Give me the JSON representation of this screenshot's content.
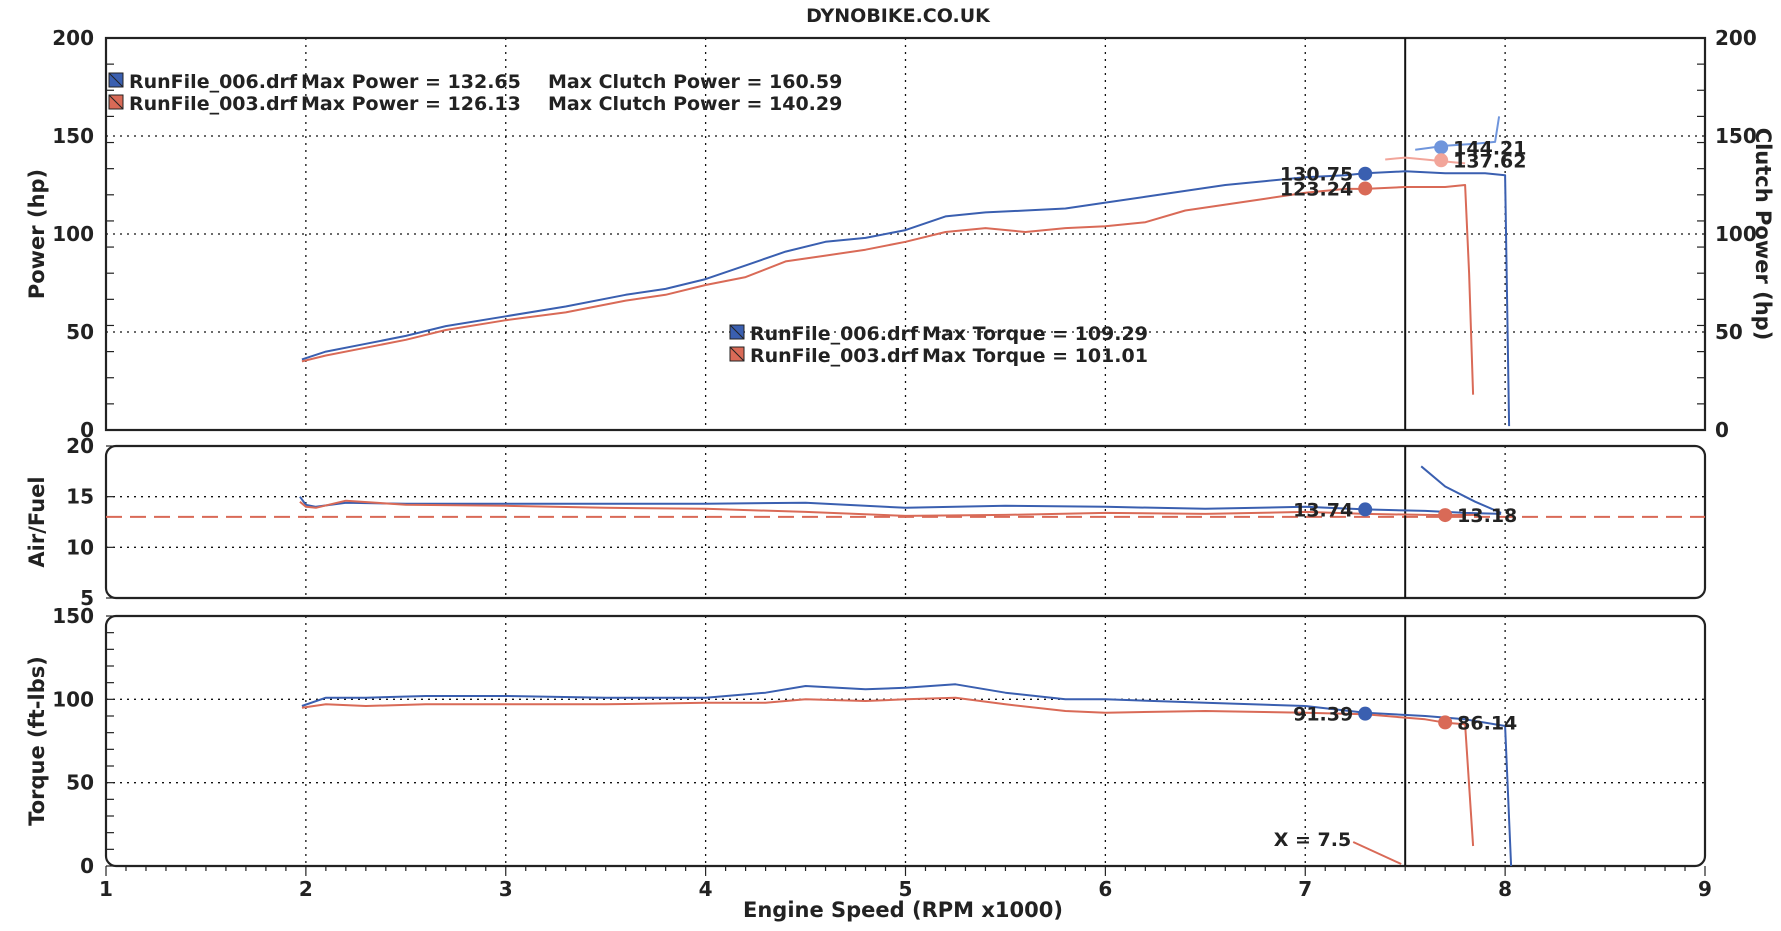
{
  "header": {
    "title": "DYNOBIKE.CO.UK"
  },
  "colors": {
    "run006": "#3a5fb0",
    "run003": "#d96a57",
    "run006_clutch": "#6f95dc",
    "run003_clutch": "#f2a59a",
    "afr_target": "#d96a57",
    "cursor": "#111111"
  },
  "chart_data": {
    "type": "line",
    "xlabel": "Engine Speed (RPM x1000)",
    "xlim": [
      1,
      9
    ],
    "x_ticks": [
      "1",
      "2",
      "3",
      "4",
      "5",
      "6",
      "7",
      "8",
      "9"
    ],
    "cursor": {
      "x": 7.5,
      "label": "X = 7.5"
    },
    "panels": [
      {
        "id": "power",
        "ylabel": "Power (hp)",
        "ylabel_right": "Clutch Power (hp)",
        "ylim": [
          0,
          200
        ],
        "y_ticks": [
          "0",
          "50",
          "100",
          "150",
          "200"
        ],
        "y_ticks_right": [
          "0",
          "50",
          "100",
          "150",
          "200"
        ],
        "legend": [
          {
            "file": "RunFile_006.drf",
            "text": "Max Power = 132.65",
            "clutch": "Max Clutch Power = 160.59"
          },
          {
            "file": "RunFile_003.drf",
            "text": "Max Power = 126.13",
            "clutch": "Max Clutch Power = 140.29"
          }
        ],
        "torque_legend": [
          {
            "file": "RunFile_006.drf",
            "text": "Max Torque = 109.29"
          },
          {
            "file": "RunFile_003.drf",
            "text": "Max Torque = 101.01"
          }
        ],
        "series": [
          {
            "name": "RunFile_006.drf",
            "x": [
              1.98,
              2.1,
              2.3,
              2.5,
              2.7,
              3.0,
              3.3,
              3.6,
              3.8,
              4.0,
              4.2,
              4.4,
              4.6,
              4.8,
              5.0,
              5.2,
              5.4,
              5.6,
              5.8,
              6.0,
              6.2,
              6.4,
              6.6,
              6.8,
              7.0,
              7.2,
              7.3,
              7.5,
              7.7,
              7.9,
              8.0,
              8.02
            ],
            "y": [
              36,
              40,
              44,
              48,
              53,
              58,
              63,
              69,
              72,
              77,
              84,
              91,
              96,
              98,
              102,
              109,
              111,
              112,
              113,
              116,
              119,
              122,
              125,
              127,
              129,
              130,
              131,
              132,
              131,
              131,
              130,
              2
            ]
          },
          {
            "name": "RunFile_003.drf",
            "x": [
              1.98,
              2.1,
              2.3,
              2.5,
              2.7,
              3.0,
              3.3,
              3.6,
              3.8,
              4.0,
              4.2,
              4.4,
              4.6,
              4.8,
              5.0,
              5.2,
              5.4,
              5.6,
              5.8,
              6.0,
              6.2,
              6.4,
              6.6,
              6.8,
              7.0,
              7.2,
              7.3,
              7.5,
              7.7,
              7.8,
              7.82,
              7.84
            ],
            "y": [
              35,
              38,
              42,
              46,
              51,
              56,
              60,
              66,
              69,
              74,
              78,
              86,
              89,
              92,
              96,
              101,
              103,
              101,
              103,
              104,
              106,
              112,
              115,
              118,
              121,
              123,
              123,
              124,
              124,
              125,
              80,
              18
            ]
          },
          {
            "name": "RunFile_006.drf Clutch Power",
            "x": [
              7.55,
              7.7,
              7.85,
              7.95,
              7.97
            ],
            "y": [
              143,
              145,
              146,
              147,
              160
            ]
          },
          {
            "name": "RunFile_003.drf Clutch Power",
            "x": [
              7.4,
              7.5,
              7.6,
              7.7,
              7.8
            ],
            "y": [
              138,
              139,
              138,
              137,
              136
            ]
          }
        ],
        "markers": [
          {
            "x": 7.3,
            "y": 130.75,
            "label": "130.75",
            "series": "run006"
          },
          {
            "x": 7.3,
            "y": 123.24,
            "label": "123.24",
            "series": "run003"
          },
          {
            "x": 7.68,
            "y": 144.21,
            "label": "144.21",
            "series": "run006_clutch"
          },
          {
            "x": 7.68,
            "y": 137.62,
            "label": "137.62",
            "series": "run003_clutch"
          }
        ]
      },
      {
        "id": "afr",
        "ylabel": "Air/Fuel",
        "ylim": [
          5,
          20
        ],
        "y_ticks": [
          "5",
          "10",
          "15",
          "20"
        ],
        "target_line": 13.0,
        "series": [
          {
            "name": "RunFile_006.drf",
            "x": [
              1.97,
              2.0,
              2.05,
              2.2,
              2.5,
              3.0,
              3.5,
              4.0,
              4.5,
              5.0,
              5.5,
              6.0,
              6.5,
              7.0,
              7.3,
              7.6,
              7.8,
              7.98
            ],
            "y": [
              15,
              14.2,
              14.0,
              14.4,
              14.3,
              14.3,
              14.3,
              14.3,
              14.4,
              13.9,
              14.1,
              14.0,
              13.8,
              14.0,
              13.74,
              13.6,
              13.4,
              13.3
            ]
          },
          {
            "name": "RunFile_003.drf",
            "x": [
              1.97,
              2.0,
              2.05,
              2.2,
              2.5,
              3.0,
              3.5,
              4.0,
              4.5,
              5.0,
              5.5,
              6.0,
              6.5,
              7.0,
              7.3,
              7.6,
              7.7,
              7.85
            ],
            "y": [
              14.5,
              14.0,
              13.9,
              14.6,
              14.2,
              14.1,
              13.9,
              13.8,
              13.5,
              13.1,
              13.2,
              13.4,
              13.3,
              13.5,
              13.3,
              13.2,
              13.18,
              13.2
            ]
          },
          {
            "name": "RunFile_006.drf lean",
            "x": [
              7.58,
              7.7,
              7.85,
              7.98
            ],
            "y": [
              18,
              16,
              14.5,
              13.4
            ]
          }
        ],
        "markers": [
          {
            "x": 7.3,
            "y": 13.74,
            "label": "13.74",
            "series": "run006"
          },
          {
            "x": 7.7,
            "y": 13.18,
            "label": "13.18",
            "series": "run003"
          }
        ]
      },
      {
        "id": "torque",
        "ylabel": "Torque (ft-lbs)",
        "ylim": [
          0,
          150
        ],
        "y_ticks": [
          "0",
          "50",
          "100",
          "150"
        ],
        "series": [
          {
            "name": "RunFile_006.drf",
            "x": [
              1.98,
              2.1,
              2.3,
              2.6,
              3.0,
              3.5,
              4.0,
              4.3,
              4.5,
              4.8,
              5.0,
              5.25,
              5.5,
              5.8,
              6.0,
              6.5,
              7.0,
              7.3,
              7.6,
              7.8,
              8.0,
              8.03
            ],
            "y": [
              96,
              101,
              101,
              102,
              102,
              101,
              101,
              104,
              108,
              106,
              107,
              109,
              104,
              100,
              100,
              98,
              96,
              92,
              90,
              88,
              84,
              0
            ]
          },
          {
            "name": "RunFile_003.drf",
            "x": [
              1.98,
              2.1,
              2.3,
              2.6,
              3.0,
              3.5,
              4.0,
              4.3,
              4.5,
              4.8,
              5.0,
              5.25,
              5.5,
              5.8,
              6.0,
              6.5,
              7.0,
              7.3,
              7.6,
              7.7,
              7.8,
              7.84
            ],
            "y": [
              95,
              97,
              96,
              97,
              97,
              97,
              98,
              98,
              100,
              99,
              100,
              101,
              97,
              93,
              92,
              93,
              92,
              91,
              88,
              86,
              85,
              12
            ]
          }
        ],
        "markers": [
          {
            "x": 7.3,
            "y": 91.39,
            "label": "91.39",
            "series": "run006"
          },
          {
            "x": 7.7,
            "y": 86.14,
            "label": "86.14",
            "series": "run003"
          }
        ]
      }
    ]
  }
}
